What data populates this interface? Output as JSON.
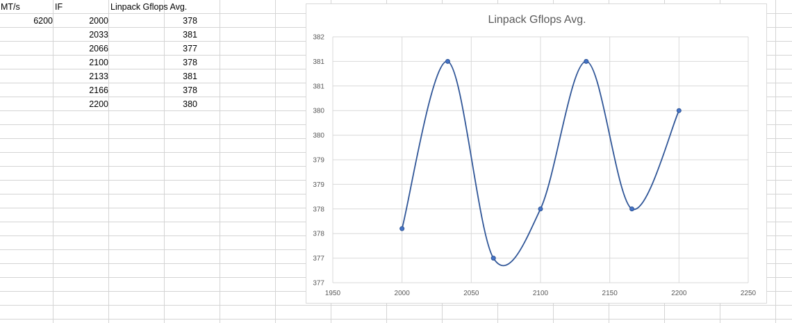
{
  "sheet": {
    "headers": {
      "a": "MT/s",
      "b": "IF",
      "c": "Linpack Gflops Avg."
    },
    "mts_value": "6200",
    "rows": [
      {
        "if": "2000",
        "gflops": "378"
      },
      {
        "if": "2033",
        "gflops": "381"
      },
      {
        "if": "2066",
        "gflops": "377"
      },
      {
        "if": "2100",
        "gflops": "378"
      },
      {
        "if": "2133",
        "gflops": "381"
      },
      {
        "if": "2166",
        "gflops": "378"
      },
      {
        "if": "2200",
        "gflops": "380"
      }
    ]
  },
  "chart_data": {
    "type": "line",
    "title": "Linpack Gflops Avg.",
    "xlabel": "",
    "ylabel": "",
    "smooth": true,
    "markers": true,
    "grid": true,
    "legend": "none",
    "series_color": "#2f5597",
    "marker_color": "#4472c4",
    "x": [
      2000,
      2033,
      2066,
      2100,
      2133,
      2166,
      2200
    ],
    "series": [
      {
        "values": [
          377.6,
          381,
          377,
          378,
          381,
          378,
          380
        ]
      }
    ],
    "xlim": [
      1950,
      2250
    ],
    "xticks": [
      1950,
      2000,
      2050,
      2100,
      2150,
      2200,
      2250
    ],
    "ylim": [
      376.5,
      381.5
    ],
    "yticks": [
      376.5,
      377,
      377.5,
      378,
      378.5,
      379,
      379.5,
      380,
      380.5,
      381,
      381.5
    ],
    "ytick_labels": [
      "377",
      "377",
      "378",
      "378",
      "379",
      "379",
      "380",
      "380",
      "381",
      "381",
      "382"
    ]
  }
}
